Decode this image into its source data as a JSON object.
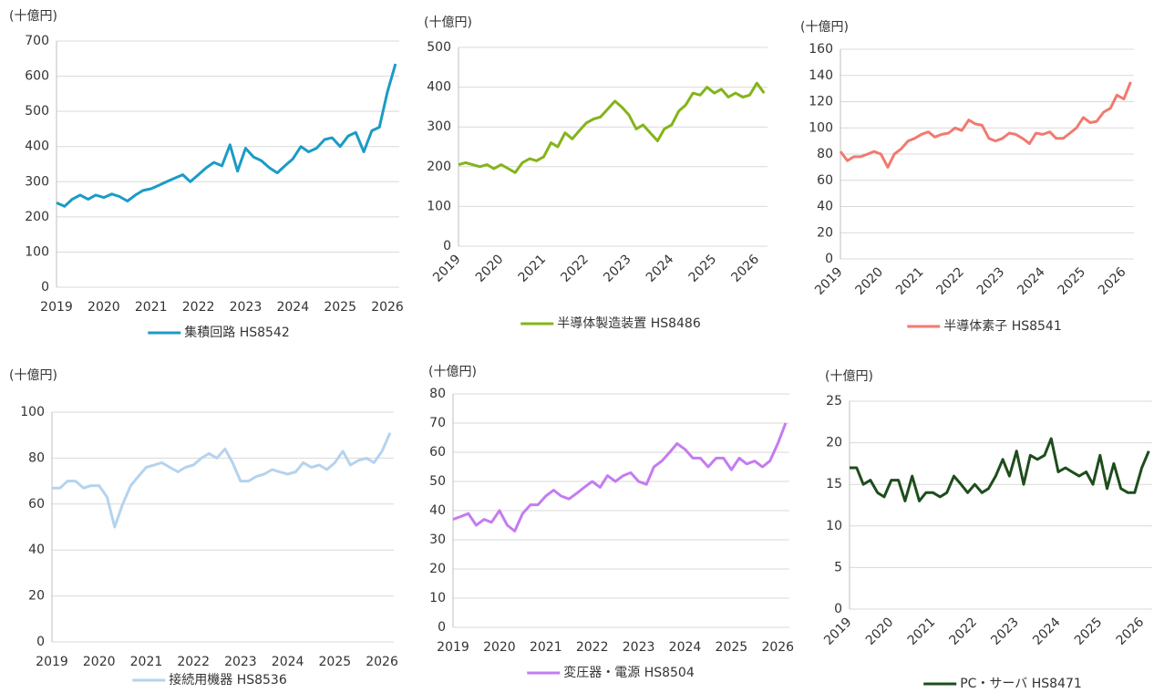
{
  "chart_data": [
    {
      "type": "line",
      "unit_label": "(十億円)",
      "x": [
        2019,
        2019.17,
        2019.33,
        2019.5,
        2019.67,
        2019.83,
        2020,
        2020.17,
        2020.33,
        2020.5,
        2020.67,
        2020.83,
        2021,
        2021.17,
        2021.33,
        2021.5,
        2021.67,
        2021.83,
        2022,
        2022.17,
        2022.33,
        2022.5,
        2022.67,
        2022.83,
        2023,
        2023.17,
        2023.33,
        2023.5,
        2023.67,
        2023.83,
        2024,
        2024.17,
        2024.33,
        2024.5,
        2024.67,
        2024.83,
        2025,
        2025.17,
        2025.33,
        2025.5,
        2025.67,
        2025.83,
        2026,
        2026.17
      ],
      "xlim": [
        2019,
        2026.25
      ],
      "xticks": [
        2019,
        2020,
        2021,
        2022,
        2023,
        2024,
        2025,
        2026
      ],
      "ylim": [
        0,
        700
      ],
      "yticks": [
        0,
        100,
        200,
        300,
        400,
        500,
        600,
        700
      ],
      "grid": true,
      "series": [
        {
          "name": "集積回路 HS8542",
          "color": "#1b9bc6",
          "values": [
            240,
            230,
            250,
            262,
            250,
            262,
            255,
            265,
            258,
            245,
            262,
            275,
            280,
            290,
            300,
            310,
            320,
            300,
            320,
            340,
            355,
            345,
            405,
            330,
            395,
            370,
            360,
            340,
            325,
            345,
            365,
            400,
            385,
            395,
            420,
            425,
            400,
            430,
            440,
            385,
            445,
            455,
            555,
            635
          ]
        }
      ]
    },
    {
      "type": "line",
      "unit_label": "(十億円)",
      "x": [
        2019,
        2019.17,
        2019.33,
        2019.5,
        2019.67,
        2019.83,
        2020,
        2020.17,
        2020.33,
        2020.5,
        2020.67,
        2020.83,
        2021,
        2021.17,
        2021.33,
        2021.5,
        2021.67,
        2021.83,
        2022,
        2022.17,
        2022.33,
        2022.5,
        2022.67,
        2022.83,
        2023,
        2023.17,
        2023.33,
        2023.5,
        2023.67,
        2023.83,
        2024,
        2024.17,
        2024.33,
        2024.5,
        2024.67,
        2024.83,
        2025,
        2025.17,
        2025.33,
        2025.5,
        2025.67,
        2025.83,
        2026,
        2026.17
      ],
      "xlim": [
        2019,
        2026.25
      ],
      "xticks": [
        2019,
        2020,
        2021,
        2022,
        2023,
        2024,
        2025,
        2026
      ],
      "ylim": [
        0,
        500
      ],
      "yticks": [
        0,
        100,
        200,
        300,
        400,
        500
      ],
      "grid": true,
      "series": [
        {
          "name": "半導体製造装置 HS8486",
          "color": "#84b41a",
          "values": [
            205,
            210,
            205,
            200,
            205,
            195,
            205,
            195,
            185,
            210,
            220,
            215,
            225,
            260,
            250,
            285,
            270,
            290,
            310,
            320,
            325,
            345,
            365,
            350,
            330,
            295,
            305,
            285,
            265,
            295,
            305,
            340,
            355,
            385,
            380,
            400,
            385,
            395,
            375,
            385,
            375,
            380,
            410,
            385
          ]
        }
      ]
    },
    {
      "type": "line",
      "unit_label": "(十億円)",
      "x": [
        2019,
        2019.17,
        2019.33,
        2019.5,
        2019.67,
        2019.83,
        2020,
        2020.17,
        2020.33,
        2020.5,
        2020.67,
        2020.83,
        2021,
        2021.17,
        2021.33,
        2021.5,
        2021.67,
        2021.83,
        2022,
        2022.17,
        2022.33,
        2022.5,
        2022.67,
        2022.83,
        2023,
        2023.17,
        2023.33,
        2023.5,
        2023.67,
        2023.83,
        2024,
        2024.17,
        2024.33,
        2024.5,
        2024.67,
        2024.83,
        2025,
        2025.17,
        2025.33,
        2025.5,
        2025.67,
        2025.83,
        2026,
        2026.17
      ],
      "xlim": [
        2019,
        2026.25
      ],
      "xticks": [
        2019,
        2020,
        2021,
        2022,
        2023,
        2024,
        2025,
        2026
      ],
      "ylim": [
        0,
        160
      ],
      "yticks": [
        0,
        20,
        40,
        60,
        80,
        100,
        120,
        140,
        160
      ],
      "grid": true,
      "series": [
        {
          "name": "半導体素子 HS8541",
          "color": "#f17a6f",
          "values": [
            82,
            75,
            78,
            78,
            80,
            82,
            80,
            70,
            80,
            84,
            90,
            92,
            95,
            97,
            93,
            95,
            96,
            100,
            98,
            106,
            103,
            102,
            92,
            90,
            92,
            96,
            95,
            92,
            88,
            96,
            95,
            97,
            92,
            92,
            96,
            100,
            108,
            104,
            105,
            112,
            115,
            125,
            122,
            135
          ]
        }
      ]
    },
    {
      "type": "line",
      "unit_label": "(十億円)",
      "x": [
        2019,
        2019.17,
        2019.33,
        2019.5,
        2019.67,
        2019.83,
        2020,
        2020.17,
        2020.33,
        2020.5,
        2020.67,
        2020.83,
        2021,
        2021.17,
        2021.33,
        2021.5,
        2021.67,
        2021.83,
        2022,
        2022.17,
        2022.33,
        2022.5,
        2022.67,
        2022.83,
        2023,
        2023.17,
        2023.33,
        2023.5,
        2023.67,
        2023.83,
        2024,
        2024.17,
        2024.33,
        2024.5,
        2024.67,
        2024.83,
        2025,
        2025.17,
        2025.33,
        2025.5,
        2025.67,
        2025.83,
        2026,
        2026.17
      ],
      "xlim": [
        2019,
        2026.25
      ],
      "xticks": [
        2019,
        2020,
        2021,
        2022,
        2023,
        2024,
        2025,
        2026
      ],
      "ylim": [
        0,
        100
      ],
      "yticks": [
        0,
        20,
        40,
        60,
        80,
        100
      ],
      "grid": true,
      "series": [
        {
          "name": "接続用機器 HS8536",
          "color": "#b5d3ee",
          "values": [
            67,
            67,
            70,
            70,
            67,
            68,
            68,
            63,
            50,
            60,
            68,
            72,
            76,
            77,
            78,
            76,
            74,
            76,
            77,
            80,
            82,
            80,
            84,
            78,
            70,
            70,
            72,
            73,
            75,
            74,
            73,
            74,
            78,
            76,
            77,
            75,
            78,
            83,
            77,
            79,
            80,
            78,
            83,
            91
          ]
        }
      ]
    },
    {
      "type": "line",
      "unit_label": "(十億円)",
      "x": [
        2019,
        2019.17,
        2019.33,
        2019.5,
        2019.67,
        2019.83,
        2020,
        2020.17,
        2020.33,
        2020.5,
        2020.67,
        2020.83,
        2021,
        2021.17,
        2021.33,
        2021.5,
        2021.67,
        2021.83,
        2022,
        2022.17,
        2022.33,
        2022.5,
        2022.67,
        2022.83,
        2023,
        2023.17,
        2023.33,
        2023.5,
        2023.67,
        2023.83,
        2024,
        2024.17,
        2024.33,
        2024.5,
        2024.67,
        2024.83,
        2025,
        2025.17,
        2025.33,
        2025.5,
        2025.67,
        2025.83,
        2026,
        2026.17
      ],
      "xlim": [
        2019,
        2026.25
      ],
      "xticks": [
        2019,
        2020,
        2021,
        2022,
        2023,
        2024,
        2025,
        2026
      ],
      "ylim": [
        0,
        80
      ],
      "yticks": [
        0,
        10,
        20,
        30,
        40,
        50,
        60,
        70,
        80
      ],
      "grid": true,
      "series": [
        {
          "name": "変圧器・電源 HS8504",
          "color": "#c47cf0",
          "values": [
            37,
            38,
            39,
            35,
            37,
            36,
            40,
            35,
            33,
            39,
            42,
            42,
            45,
            47,
            45,
            44,
            46,
            48,
            50,
            48,
            52,
            50,
            52,
            53,
            50,
            49,
            55,
            57,
            60,
            63,
            61,
            58,
            58,
            55,
            58,
            58,
            54,
            58,
            56,
            57,
            55,
            57,
            63,
            70
          ]
        }
      ]
    },
    {
      "type": "line",
      "unit_label": "(十億円)",
      "x": [
        2019,
        2019.17,
        2019.33,
        2019.5,
        2019.67,
        2019.83,
        2020,
        2020.17,
        2020.33,
        2020.5,
        2020.67,
        2020.83,
        2021,
        2021.17,
        2021.33,
        2021.5,
        2021.67,
        2021.83,
        2022,
        2022.17,
        2022.33,
        2022.5,
        2022.67,
        2022.83,
        2023,
        2023.17,
        2023.33,
        2023.5,
        2023.67,
        2023.83,
        2024,
        2024.17,
        2024.33,
        2024.5,
        2024.67,
        2024.83,
        2025,
        2025.17,
        2025.33,
        2025.5,
        2025.67,
        2025.83,
        2026,
        2026.17
      ],
      "xlim": [
        2019,
        2026.25
      ],
      "xticks": [
        2019,
        2020,
        2021,
        2022,
        2023,
        2024,
        2025,
        2026
      ],
      "ylim": [
        0,
        25
      ],
      "yticks": [
        0,
        5,
        10,
        15,
        20,
        25
      ],
      "grid": true,
      "series": [
        {
          "name": "PC・サーバ HS8471",
          "color": "#1e4d1c",
          "values": [
            17,
            17,
            15,
            15.5,
            14,
            13.5,
            15.5,
            15.5,
            13,
            16,
            13,
            14,
            14,
            13.5,
            14,
            16,
            15,
            14,
            15,
            14,
            14.5,
            16,
            18,
            16,
            19,
            15,
            18.5,
            18,
            18.5,
            20.5,
            16.5,
            17,
            16.5,
            16,
            16.5,
            15,
            18.5,
            14.5,
            17.5,
            14.5,
            14,
            14,
            17,
            19
          ]
        }
      ]
    }
  ]
}
